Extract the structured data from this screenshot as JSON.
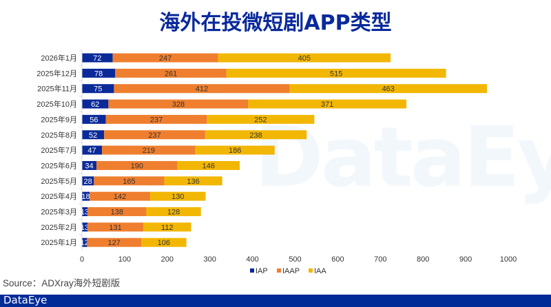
{
  "title": "海外在投微短剧APP类型",
  "source": "Source：ADXray海外短剧版",
  "footer_logo": "DataEye",
  "watermark": "DataEye",
  "colors": {
    "IAP": "#0b2a9a",
    "IAAP": "#ef7f2f",
    "IAA": "#f2b705",
    "title": "#0a2a9c",
    "footer": "#032b98"
  },
  "chart_data": {
    "type": "bar",
    "orientation": "horizontal",
    "stacked": true,
    "title": "海外在投微短剧APP类型",
    "xlabel": "",
    "ylabel": "",
    "xlim": [
      0,
      1000
    ],
    "xticks": [
      0,
      100,
      200,
      300,
      400,
      500,
      600,
      700,
      800,
      900,
      1000
    ],
    "grid": false,
    "legend_position": "bottom",
    "categories": [
      "2026年1月",
      "2025年12月",
      "2025年11月",
      "2025年10月",
      "2025年9月",
      "2025年8月",
      "2025年7月",
      "2025年6月",
      "2025年5月",
      "2025年4月",
      "2025年3月",
      "2025年2月",
      "2025年1月"
    ],
    "series": [
      {
        "name": "IAP",
        "values": [
          72,
          78,
          75,
          62,
          56,
          52,
          47,
          34,
          28,
          18,
          13,
          13,
          12
        ]
      },
      {
        "name": "IAAP",
        "values": [
          247,
          261,
          412,
          328,
          237,
          237,
          219,
          190,
          165,
          142,
          138,
          131,
          127
        ]
      },
      {
        "name": "IAA",
        "values": [
          405,
          515,
          463,
          371,
          252,
          238,
          186,
          146,
          136,
          130,
          128,
          112,
          106
        ]
      }
    ]
  }
}
